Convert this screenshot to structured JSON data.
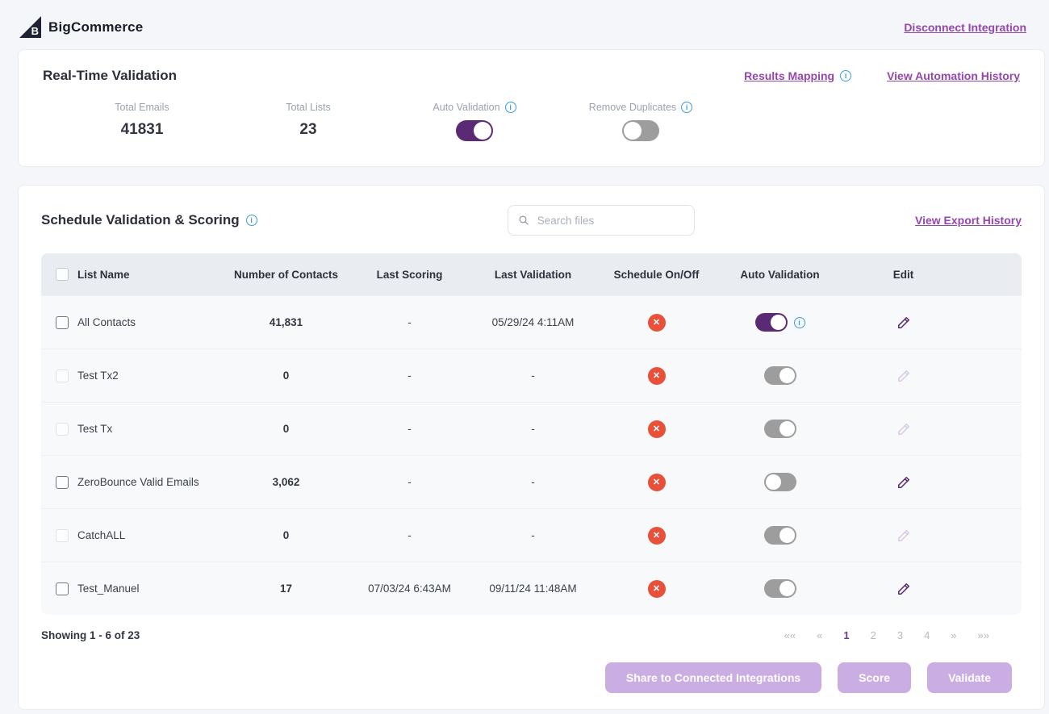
{
  "colors": {
    "accent_purple_link": "#9447ad",
    "deep_purple": "#5b2a74",
    "toggle_gray": "#9d9d9d",
    "status_red": "#e8503a",
    "info_blue": "#3d9bd9",
    "disabled_button_purple": "#c9ade3",
    "table_header_bg": "#e9edf2",
    "row_bg": "#f7f9fb",
    "page_bg": "#f4f6f9"
  },
  "icons": {
    "info_glyph": "i",
    "schedule_off_glyph": "✕",
    "brand_glyph": "B"
  },
  "header": {
    "brand": "BigCommerce",
    "disconnect": "Disconnect Integration"
  },
  "realtime": {
    "title": "Real-Time Validation",
    "results_mapping": "Results Mapping",
    "view_automation_history": "View Automation History",
    "stats": [
      {
        "label": "Total Emails",
        "value": "41831"
      },
      {
        "label": "Total Lists",
        "value": "23"
      }
    ],
    "toggles": [
      {
        "label": "Auto Validation",
        "state": "on-purple"
      },
      {
        "label": "Remove Duplicates",
        "state": "off-gray"
      }
    ]
  },
  "schedule": {
    "title": "Schedule Validation & Scoring",
    "search_placeholder": "Search files",
    "view_export_history": "View Export History",
    "columns": [
      "List Name",
      "Number of Contacts",
      "Last Scoring",
      "Last Validation",
      "Schedule On/Off",
      "Auto Validation",
      "Edit"
    ],
    "rows": [
      {
        "name": "All Contacts",
        "contacts": "41,831",
        "last_scoring": "-",
        "last_validation": "05/29/24 4:11AM",
        "schedule": "off",
        "auto_validation": "on-purple",
        "info": true,
        "edit_disabled": false,
        "checkbox_disabled": false
      },
      {
        "name": "Test Tx2",
        "contacts": "0",
        "last_scoring": "-",
        "last_validation": "-",
        "schedule": "off",
        "auto_validation": "on-gray",
        "info": false,
        "edit_disabled": true,
        "checkbox_disabled": true
      },
      {
        "name": "Test Tx",
        "contacts": "0",
        "last_scoring": "-",
        "last_validation": "-",
        "schedule": "off",
        "auto_validation": "on-gray",
        "info": false,
        "edit_disabled": true,
        "checkbox_disabled": true
      },
      {
        "name": "ZeroBounce Valid Emails",
        "contacts": "3,062",
        "last_scoring": "-",
        "last_validation": "-",
        "schedule": "off",
        "auto_validation": "off-gray",
        "info": false,
        "edit_disabled": false,
        "checkbox_disabled": false
      },
      {
        "name": "CatchALL",
        "contacts": "0",
        "last_scoring": "-",
        "last_validation": "-",
        "schedule": "off",
        "auto_validation": "on-gray",
        "info": false,
        "edit_disabled": true,
        "checkbox_disabled": true
      },
      {
        "name": "Test_Manuel",
        "contacts": "17",
        "last_scoring": "07/03/24 6:43AM",
        "last_validation": "09/11/24 11:48AM",
        "schedule": "off",
        "auto_validation": "on-gray",
        "info": false,
        "edit_disabled": false,
        "checkbox_disabled": false
      }
    ],
    "showing": "Showing 1 - 6 of 23",
    "pagination": {
      "first": "««",
      "prev": "«",
      "pages": [
        "1",
        "2",
        "3",
        "4"
      ],
      "active_page": "1",
      "next": "»",
      "last": "»»"
    },
    "actions": [
      "Share to Connected Integrations",
      "Score",
      "Validate"
    ]
  }
}
